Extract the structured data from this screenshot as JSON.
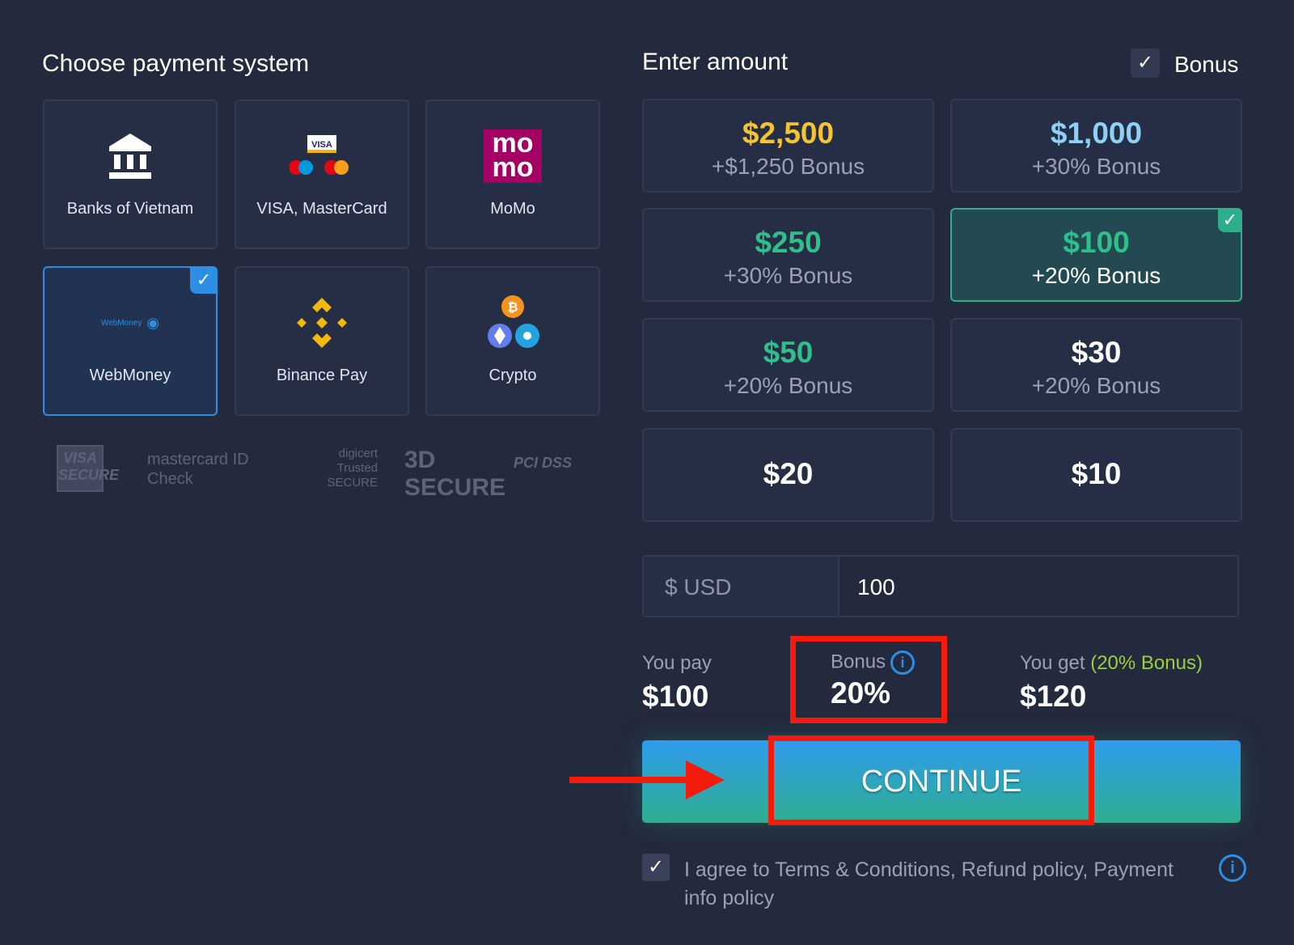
{
  "left": {
    "title": "Choose payment system",
    "methods": [
      {
        "label": "Banks of Vietnam",
        "icon": "bank-icon"
      },
      {
        "label": "VISA, MasterCard",
        "icon": "visa-mastercard-icon",
        "logo_text": "VISA"
      },
      {
        "label": "MoMo",
        "icon": "momo-icon",
        "logo_text": "mo mo"
      },
      {
        "label": "WebMoney",
        "icon": "webmoney-icon",
        "logo_text": "WebMoney",
        "selected": true
      },
      {
        "label": "Binance Pay",
        "icon": "binance-icon"
      },
      {
        "label": "Crypto",
        "icon": "crypto-icon"
      }
    ],
    "trust_logos": [
      "VISA SECURE",
      "mastercard ID Check",
      "digicert Trusted SECURE",
      "3D SECURE",
      "PCI DSS"
    ]
  },
  "right": {
    "title": "Enter amount",
    "bonus_label": "Bonus",
    "bonus_checked": true,
    "amounts": [
      {
        "value": "$2,500",
        "bonus": "+$1,250 Bonus",
        "color": "#f5c531"
      },
      {
        "value": "$1,000",
        "bonus": "+30% Bonus",
        "color": "#8fd0f7"
      },
      {
        "value": "$250",
        "bonus": "+30% Bonus",
        "color": "#2fbf8a"
      },
      {
        "value": "$100",
        "bonus": "+20% Bonus",
        "color": "#2fbf8a",
        "selected": true
      },
      {
        "value": "$50",
        "bonus": "+20% Bonus",
        "color": "#2fbf8a"
      },
      {
        "value": "$30",
        "bonus": "+20% Bonus",
        "color": "#ffffff"
      },
      {
        "value": "$20",
        "bonus": "",
        "color": "#ffffff"
      },
      {
        "value": "$10",
        "bonus": "",
        "color": "#ffffff"
      }
    ],
    "currency": "$ USD",
    "amount_value": "100",
    "summary": {
      "pay_label": "You pay",
      "pay_value": "$100",
      "bonus_label": "Bonus",
      "bonus_value": "20%",
      "get_label": "You get",
      "get_note": "(20% Bonus)",
      "get_value": "$120"
    },
    "continue_label": "CONTINUE",
    "agree_text": "I agree to Terms & Conditions, Refund policy, Payment info policy",
    "agree_checked": true
  },
  "colors": {
    "accent": "#2d8ee6",
    "green": "#2fae8e",
    "annotation": "#f21b0c"
  }
}
